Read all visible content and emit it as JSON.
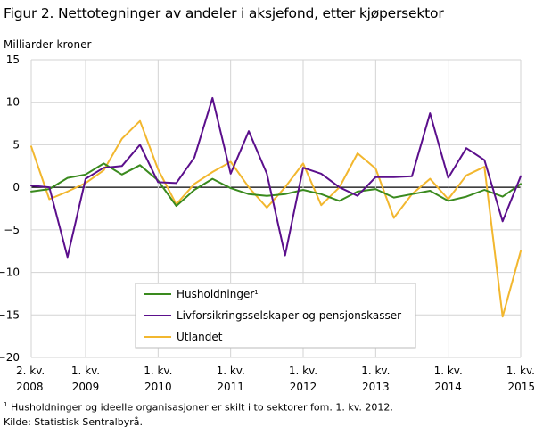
{
  "header": {
    "title": "Figur 2. Nettotegninger av andeler i aksjefond, etter kjøpersektor"
  },
  "footnotes": {
    "note_mark": "1",
    "note_text": "Husholdninger og ideelle organisasjoner er skilt i to sektorer fom. 1. kv. 2012.",
    "source": "Kilde: Statistisk Sentralbyrå."
  },
  "chart_data": {
    "type": "line",
    "title": "Figur 2. Nettotegninger av andeler i aksjefond, etter kjøpersektor",
    "ylabel": "Milliarder  kroner",
    "ylim": [
      -20,
      15
    ],
    "yticks": [
      15,
      10,
      5,
      0,
      -5,
      -10,
      -15,
      -20
    ],
    "grid": true,
    "legend_position": "bottom-left",
    "x": [
      "2. kv. 2008",
      "3. kv. 2008",
      "4. kv. 2008",
      "1. kv. 2009",
      "2. kv. 2009",
      "3. kv. 2009",
      "4. kv. 2009",
      "1. kv. 2010",
      "2. kv. 2010",
      "3. kv. 2010",
      "4. kv. 2010",
      "1. kv. 2011",
      "2. kv. 2011",
      "3. kv. 2011",
      "4. kv. 2011",
      "1. kv. 2012",
      "2. kv. 2012",
      "3. kv. 2012",
      "4. kv. 2012",
      "1. kv. 2013",
      "2. kv. 2013",
      "3. kv. 2013",
      "4. kv. 2013",
      "1. kv. 2014",
      "2. kv. 2014",
      "3. kv. 2014",
      "4. kv. 2014",
      "1. kv. 2015"
    ],
    "xtick_labels": [
      {
        "index": 0,
        "line1": "2. kv.",
        "line2": "2008"
      },
      {
        "index": 3,
        "line1": "1. kv.",
        "line2": "2009"
      },
      {
        "index": 7,
        "line1": "1. kv.",
        "line2": "2010"
      },
      {
        "index": 11,
        "line1": "1. kv.",
        "line2": "2011"
      },
      {
        "index": 15,
        "line1": "1. kv.",
        "line2": "2012"
      },
      {
        "index": 19,
        "line1": "1. kv.",
        "line2": "2013"
      },
      {
        "index": 23,
        "line1": "1. kv.",
        "line2": "2014"
      },
      {
        "index": 27,
        "line1": "1. kv.",
        "line2": "2015"
      }
    ],
    "series": [
      {
        "name": "Husholdninger",
        "name_sup": "1",
        "color": "#3a8a1e",
        "values": [
          -0.5,
          -0.2,
          1.1,
          1.5,
          2.8,
          1.5,
          2.6,
          0.8,
          -2.2,
          -0.3,
          1.0,
          -0.1,
          -0.8,
          -1.0,
          -0.8,
          -0.3,
          -0.8,
          -1.6,
          -0.5,
          -0.2,
          -1.2,
          -0.8,
          -0.4,
          -1.6,
          -1.1,
          -0.3,
          -1.1,
          0.4
        ]
      },
      {
        "name": "Livforsikringsselskaper og pensjonskasser",
        "color": "#5b0f8c",
        "values": [
          0.2,
          0.0,
          -8.2,
          1.0,
          2.3,
          2.5,
          5.0,
          0.6,
          0.5,
          3.5,
          10.5,
          1.6,
          6.6,
          1.6,
          -8.0,
          2.3,
          1.6,
          0.0,
          -1.0,
          1.2,
          1.2,
          1.3,
          8.7,
          1.1,
          4.6,
          3.2,
          -4.0,
          1.3
        ]
      },
      {
        "name": "Utlandet",
        "color": "#f2b72f",
        "values": [
          4.8,
          -1.4,
          -0.5,
          0.5,
          2.0,
          5.7,
          7.8,
          2.1,
          -2.0,
          0.4,
          1.8,
          3.0,
          0.0,
          -2.4,
          0.0,
          2.8,
          -2.1,
          0.0,
          4.0,
          2.2,
          -3.6,
          -0.8,
          1.0,
          -1.4,
          1.4,
          2.4,
          -15.2,
          -7.5
        ]
      }
    ]
  }
}
